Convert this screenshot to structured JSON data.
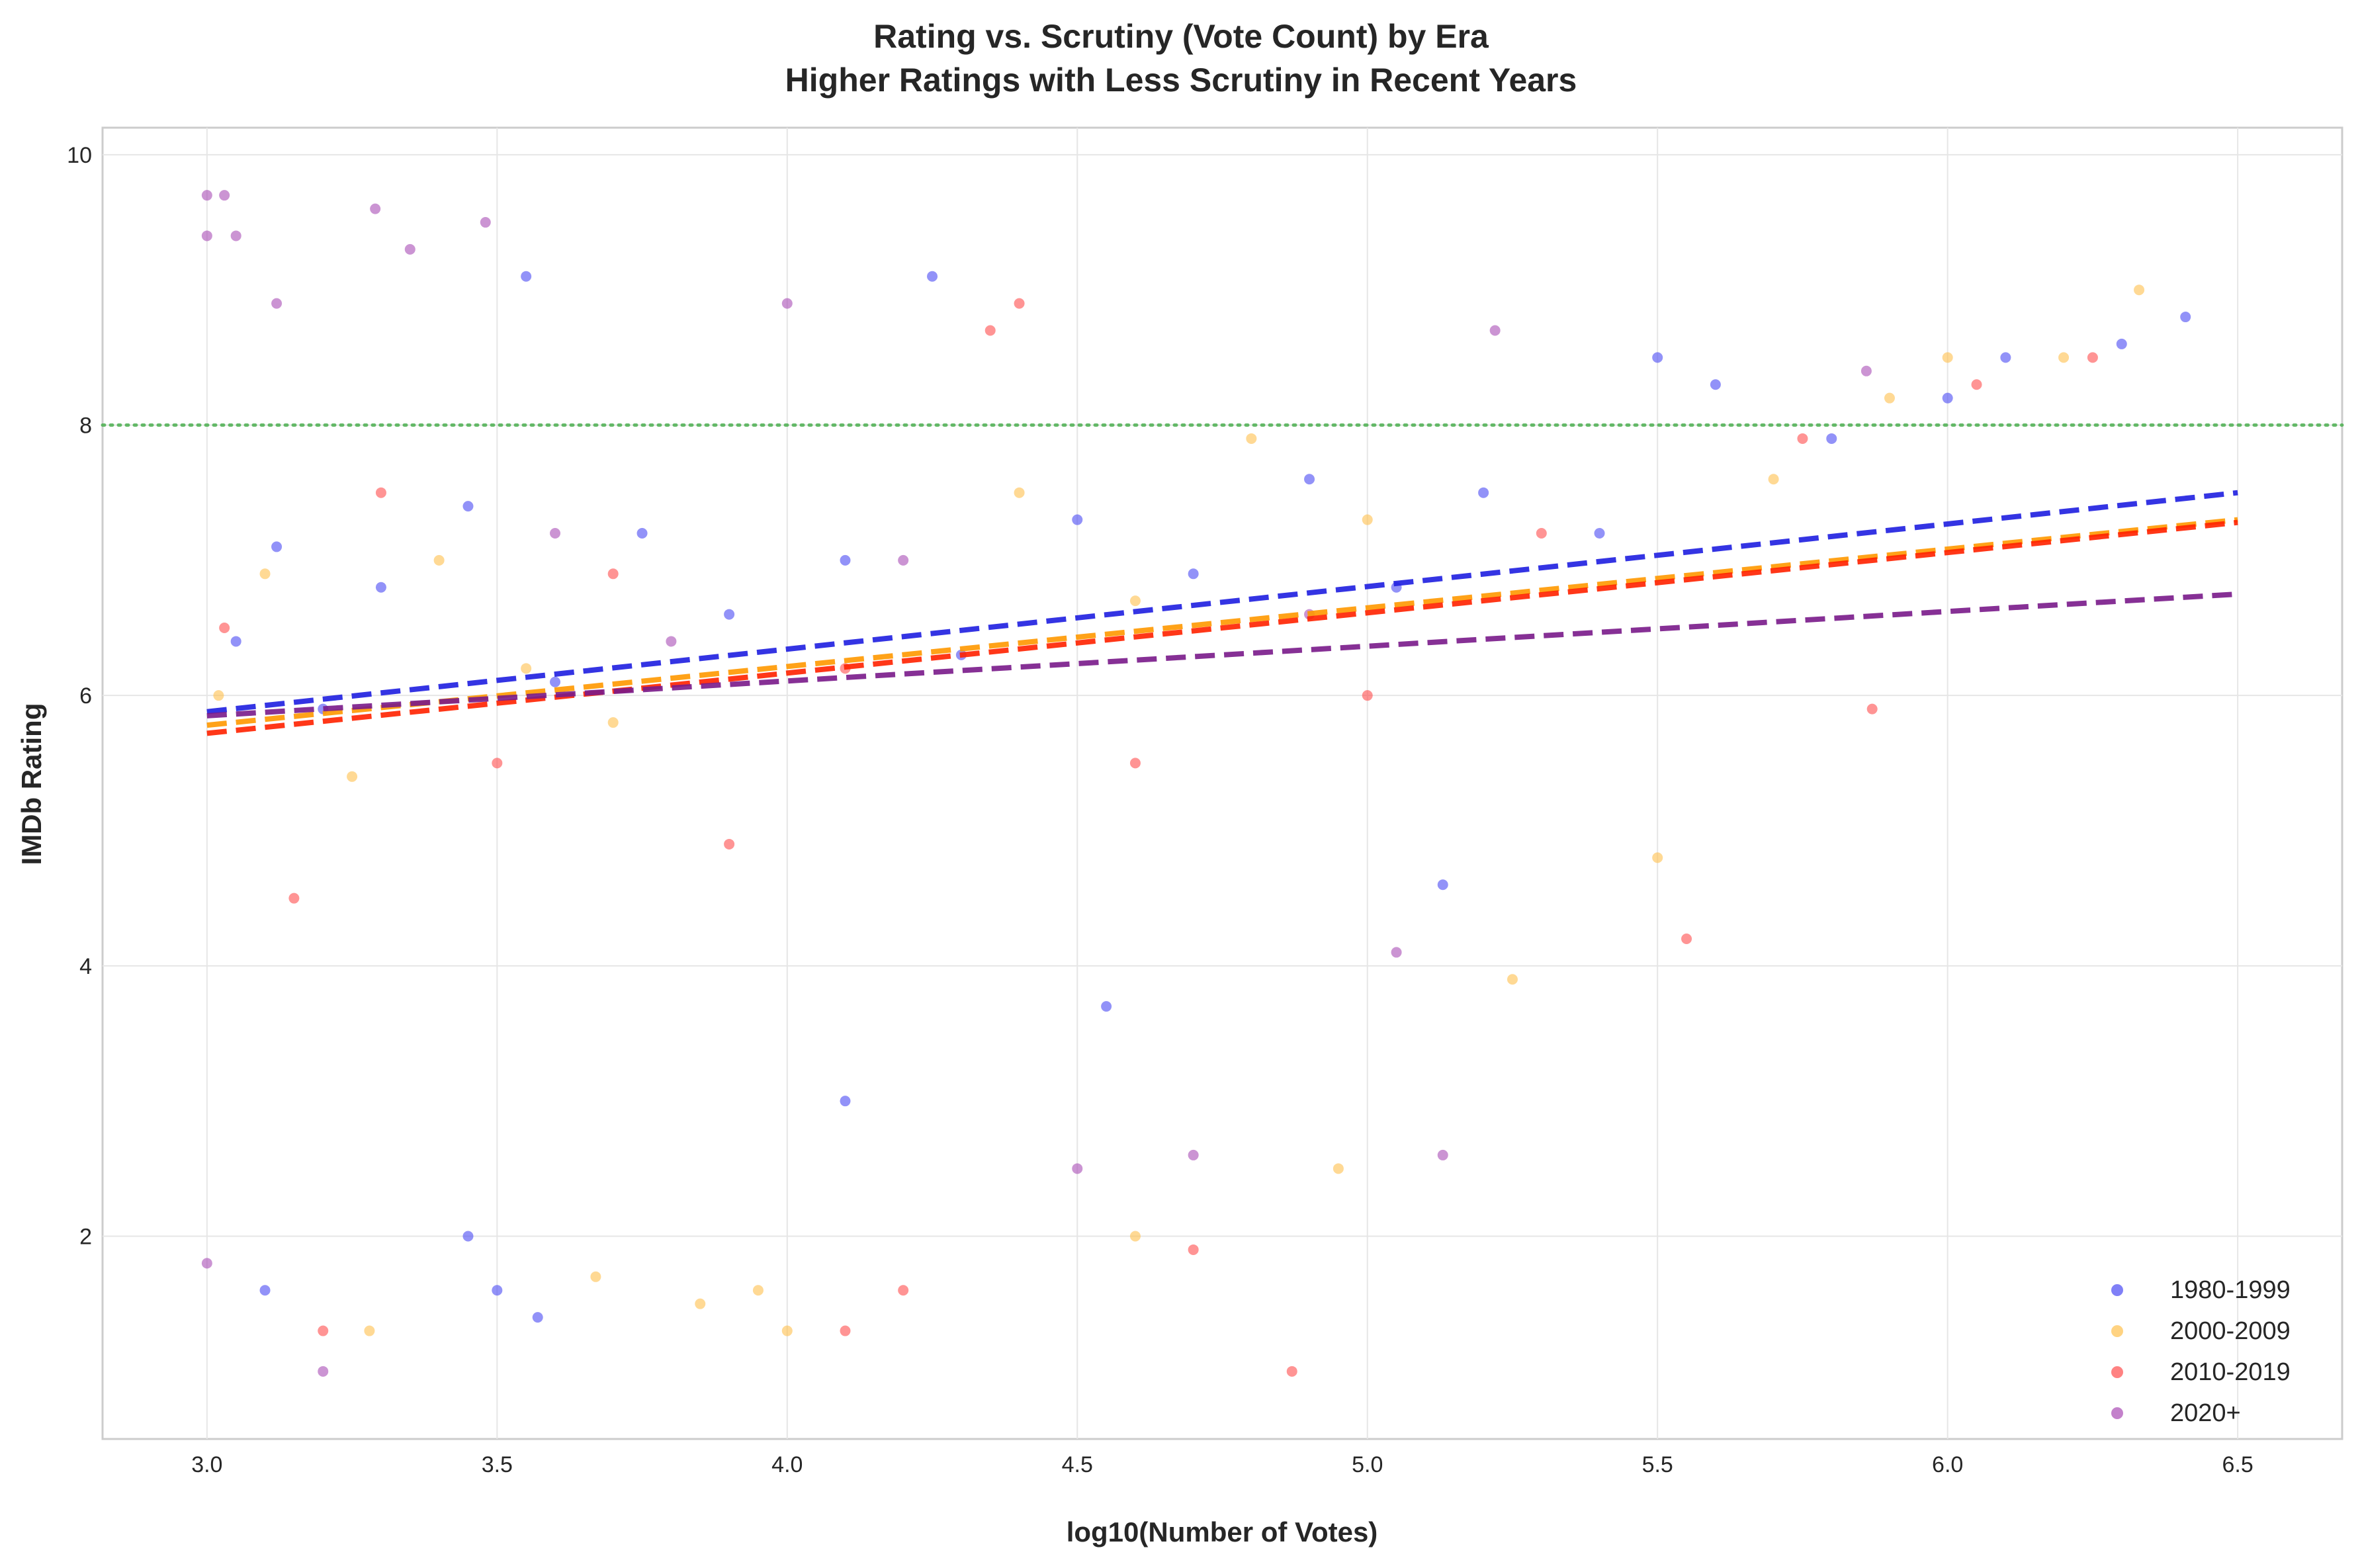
{
  "chart_data": {
    "type": "scatter",
    "title": "Rating vs. Scrutiny (Vote Count) by Era",
    "subtitle": "Higher Ratings with Less Scrutiny in Recent Years",
    "xlabel": "log10(Number of Votes)",
    "ylabel": "IMDb Rating",
    "xlim": [
      2.82,
      6.68
    ],
    "ylim": [
      0.5,
      10.2
    ],
    "x_ticks": [
      "3.0",
      "3.5",
      "4.0",
      "4.5",
      "5.0",
      "5.5",
      "6.0",
      "6.5"
    ],
    "y_ticks": [
      "2",
      "4",
      "6",
      "8",
      "10"
    ],
    "grid": true,
    "legend_position": "lower-right",
    "reference_line": {
      "y": 8.0,
      "color": "#4caf50",
      "style": "dotted"
    },
    "series": [
      {
        "name": "1980-1999",
        "color": "#4a4af4",
        "trend_color": "#1f1fe0",
        "trend": {
          "x": [
            3.0,
            6.5
          ],
          "y": [
            5.88,
            7.5
          ]
        },
        "points": [
          [
            3.05,
            6.4
          ],
          [
            3.12,
            7.1
          ],
          [
            3.2,
            5.9
          ],
          [
            3.3,
            6.8
          ],
          [
            3.45,
            7.4
          ],
          [
            3.6,
            6.1
          ],
          [
            3.75,
            7.2
          ],
          [
            3.9,
            6.6
          ],
          [
            4.1,
            7.0
          ],
          [
            4.3,
            6.3
          ],
          [
            4.5,
            7.3
          ],
          [
            4.7,
            6.9
          ],
          [
            4.9,
            7.6
          ],
          [
            5.05,
            6.8
          ],
          [
            5.2,
            7.5
          ],
          [
            5.4,
            7.2
          ],
          [
            5.5,
            8.5
          ],
          [
            5.6,
            8.3
          ],
          [
            5.8,
            7.9
          ],
          [
            6.0,
            8.2
          ],
          [
            6.1,
            8.5
          ],
          [
            6.3,
            8.6
          ],
          [
            6.41,
            8.8
          ],
          [
            4.25,
            9.1
          ],
          [
            3.55,
            9.1
          ],
          [
            3.45,
            2.0
          ],
          [
            3.5,
            1.6
          ],
          [
            3.57,
            1.4
          ],
          [
            4.1,
            3.0
          ],
          [
            5.13,
            4.6
          ],
          [
            4.55,
            3.7
          ],
          [
            3.1,
            1.6
          ]
        ]
      },
      {
        "name": "2000-2009",
        "color": "#ffc04d",
        "trend_color": "#ff9900",
        "trend": {
          "x": [
            3.0,
            6.5
          ],
          "y": [
            5.78,
            7.3
          ]
        },
        "points": [
          [
            3.02,
            6.0
          ],
          [
            3.1,
            6.9
          ],
          [
            3.25,
            5.4
          ],
          [
            3.4,
            7.0
          ],
          [
            3.55,
            6.2
          ],
          [
            3.7,
            5.8
          ],
          [
            3.85,
            1.5
          ],
          [
            3.95,
            1.6
          ],
          [
            4.0,
            1.3
          ],
          [
            4.4,
            7.5
          ],
          [
            4.6,
            6.7
          ],
          [
            4.8,
            7.9
          ],
          [
            4.95,
            2.5
          ],
          [
            5.0,
            7.3
          ],
          [
            5.25,
            3.9
          ],
          [
            5.5,
            4.8
          ],
          [
            5.7,
            7.6
          ],
          [
            5.9,
            8.2
          ],
          [
            6.0,
            8.5
          ],
          [
            6.2,
            8.5
          ],
          [
            6.33,
            9.0
          ],
          [
            4.6,
            2.0
          ],
          [
            3.67,
            1.7
          ],
          [
            3.28,
            1.3
          ]
        ]
      },
      {
        "name": "2010-2019",
        "color": "#ff4d4d",
        "trend_color": "#ff2200",
        "trend": {
          "x": [
            3.0,
            6.5
          ],
          "y": [
            5.72,
            7.28
          ]
        },
        "points": [
          [
            3.03,
            6.5
          ],
          [
            3.15,
            4.5
          ],
          [
            3.3,
            7.5
          ],
          [
            3.5,
            5.5
          ],
          [
            3.7,
            6.9
          ],
          [
            3.9,
            4.9
          ],
          [
            4.1,
            6.2
          ],
          [
            4.35,
            8.7
          ],
          [
            4.6,
            5.5
          ],
          [
            4.87,
            1.0
          ],
          [
            5.0,
            6.0
          ],
          [
            5.3,
            7.2
          ],
          [
            5.55,
            4.2
          ],
          [
            5.75,
            7.9
          ],
          [
            5.87,
            5.9
          ],
          [
            6.05,
            8.3
          ],
          [
            6.25,
            8.5
          ],
          [
            4.7,
            1.9
          ],
          [
            4.2,
            1.6
          ],
          [
            4.1,
            1.3
          ],
          [
            3.2,
            1.3
          ],
          [
            4.4,
            8.9
          ]
        ]
      },
      {
        "name": "2020+",
        "color": "#a94cb5",
        "trend_color": "#7a1a8a",
        "trend": {
          "x": [
            3.0,
            6.5
          ],
          "y": [
            5.85,
            6.75
          ]
        },
        "points": [
          [
            3.0,
            9.7
          ],
          [
            3.03,
            9.7
          ],
          [
            3.0,
            9.4
          ],
          [
            3.05,
            9.4
          ],
          [
            3.0,
            1.8
          ],
          [
            3.2,
            1.0
          ],
          [
            3.29,
            9.6
          ],
          [
            3.35,
            9.3
          ],
          [
            3.48,
            9.5
          ],
          [
            3.6,
            7.2
          ],
          [
            3.8,
            6.4
          ],
          [
            4.0,
            8.9
          ],
          [
            4.2,
            7.0
          ],
          [
            4.5,
            2.5
          ],
          [
            4.7,
            2.6
          ],
          [
            4.9,
            6.6
          ],
          [
            5.05,
            4.1
          ],
          [
            5.13,
            2.6
          ],
          [
            5.22,
            8.7
          ],
          [
            5.86,
            8.4
          ],
          [
            3.12,
            8.9
          ]
        ]
      }
    ]
  }
}
